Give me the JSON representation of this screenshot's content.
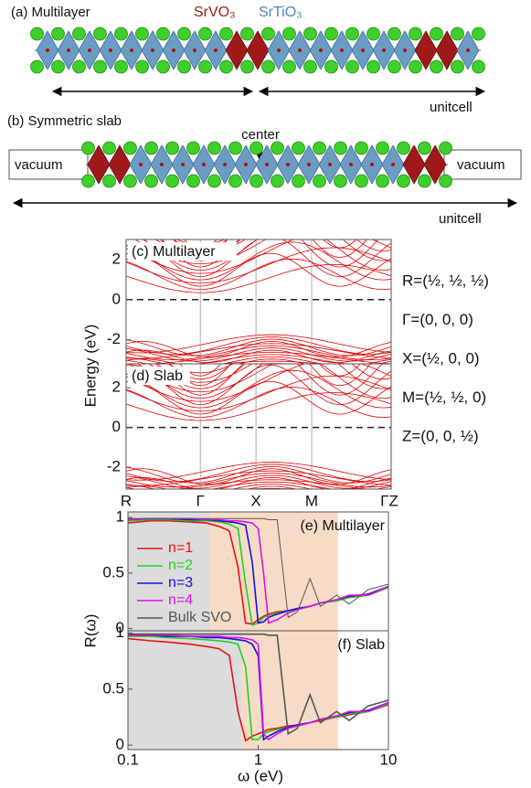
{
  "structure": {
    "a_title": "(a) Multilayer",
    "svo": "SrVO₃",
    "sto": "SrTiO₃",
    "a_unitcell": "unitcell",
    "b_title": "(b) Symmetric slab",
    "center": "center",
    "vacuum_left": "vacuum",
    "vacuum_right": "vacuum",
    "b_unitcell": "unitcell"
  },
  "k_points": [
    "R=(½, ½, ½)",
    "Γ=(0, 0, 0)",
    "X=(½, 0, 0)",
    "M=(½, ½, 0)",
    "Z=(0, 0, ½)"
  ],
  "chart_data": [
    {
      "type": "band",
      "title": "(c) Multilayer",
      "ylabel": "Energy (eV)",
      "ylim": [
        -3.2,
        3.0
      ],
      "yticks": [
        -2,
        0,
        2
      ],
      "color": "#e00000"
    },
    {
      "type": "band",
      "title": "(d) Slab",
      "categories": [
        "R",
        "Γ",
        "X",
        "M",
        "ΓZ"
      ],
      "ylim": [
        -3.1,
        3.2
      ],
      "yticks": [
        -2,
        0,
        2
      ],
      "color": "#e00000"
    },
    {
      "type": "line",
      "title": "(e) Multilayer",
      "ylabel": "R(ω)",
      "xscale": "log",
      "xlim": [
        0.1,
        10
      ],
      "ylim": [
        -0.02,
        1.05
      ],
      "yticks": [
        0,
        0.5,
        1
      ],
      "legend": "upper-left",
      "regions": [
        {
          "x": [
            0.1,
            0.43
          ],
          "color": "#dcdcdc"
        },
        {
          "x": [
            0.43,
            4.1
          ],
          "color": "#f6dcc6"
        }
      ],
      "x": [
        0.1,
        0.15,
        0.2,
        0.3,
        0.4,
        0.5,
        0.6,
        0.7,
        0.8,
        0.9,
        1,
        1.1,
        1.2,
        1.4,
        1.7,
        2,
        2.5,
        3,
        4,
        5,
        7,
        10
      ],
      "series": [
        {
          "name": "n=1",
          "color": "#e81010",
          "values": [
            0.95,
            0.97,
            0.97,
            0.96,
            0.95,
            0.92,
            0.88,
            0.55,
            0.05,
            0.04,
            0.08,
            0.11,
            0.13,
            0.15,
            0.16,
            0.18,
            0.2,
            0.23,
            0.25,
            0.28,
            0.3,
            0.37
          ]
        },
        {
          "name": "n=2",
          "color": "#20d020",
          "values": [
            0.97,
            0.98,
            0.98,
            0.97,
            0.97,
            0.96,
            0.94,
            0.9,
            0.4,
            0.03,
            0.05,
            0.1,
            0.12,
            0.14,
            0.16,
            0.18,
            0.2,
            0.23,
            0.25,
            0.28,
            0.3,
            0.37
          ]
        },
        {
          "name": "n=3",
          "color": "#1010e0",
          "values": [
            0.98,
            0.99,
            0.99,
            0.98,
            0.98,
            0.97,
            0.96,
            0.95,
            0.93,
            0.6,
            0.05,
            0.06,
            0.1,
            0.13,
            0.16,
            0.18,
            0.2,
            0.23,
            0.26,
            0.29,
            0.31,
            0.38
          ]
        },
        {
          "name": "n=4",
          "color": "#e010e0",
          "values": [
            0.98,
            0.99,
            0.99,
            0.99,
            0.98,
            0.98,
            0.97,
            0.97,
            0.96,
            0.95,
            0.9,
            0.5,
            0.05,
            0.08,
            0.14,
            0.17,
            0.2,
            0.23,
            0.26,
            0.3,
            0.3,
            0.38
          ]
        },
        {
          "name": "Bulk SVO",
          "color": "#555555",
          "values": [
            0.99,
            0.99,
            0.99,
            0.99,
            0.99,
            0.99,
            0.99,
            0.99,
            0.99,
            0.99,
            0.99,
            0.99,
            0.98,
            0.98,
            0.1,
            0.15,
            0.45,
            0.2,
            0.3,
            0.22,
            0.35,
            0.4
          ]
        }
      ]
    },
    {
      "type": "line",
      "title": "(f) Slab",
      "xlabel": "ω (eV)",
      "xscale": "log",
      "xlim": [
        0.1,
        10
      ],
      "ylim": [
        -0.04,
        1.02
      ],
      "xticks": [
        0.1,
        1,
        10
      ],
      "yticks": [
        0,
        0.5,
        1
      ],
      "regions": [
        {
          "x": [
            0.1,
            0.75
          ],
          "color": "#dcdcdc"
        },
        {
          "x": [
            0.75,
            4.1
          ],
          "color": "#f6dcc6"
        }
      ],
      "x": [
        0.1,
        0.15,
        0.2,
        0.3,
        0.4,
        0.5,
        0.6,
        0.7,
        0.8,
        0.9,
        1,
        1.1,
        1.2,
        1.4,
        1.7,
        2,
        2.5,
        3,
        4,
        5,
        7,
        10
      ],
      "series": [
        {
          "color": "#e81010",
          "values": [
            0.95,
            0.93,
            0.92,
            0.9,
            0.88,
            0.86,
            0.8,
            0.3,
            0.04,
            0.08,
            0.1,
            0.12,
            0.14,
            0.15,
            0.17,
            0.18,
            0.2,
            0.22,
            0.25,
            0.27,
            0.3,
            0.36
          ]
        },
        {
          "color": "#20d020",
          "values": [
            0.97,
            0.97,
            0.96,
            0.95,
            0.94,
            0.93,
            0.92,
            0.9,
            0.7,
            0.05,
            0.05,
            0.1,
            0.12,
            0.14,
            0.16,
            0.18,
            0.2,
            0.23,
            0.25,
            0.28,
            0.3,
            0.37
          ]
        },
        {
          "color": "#1010e0",
          "values": [
            0.98,
            0.98,
            0.97,
            0.97,
            0.96,
            0.96,
            0.95,
            0.94,
            0.93,
            0.9,
            0.8,
            0.05,
            0.08,
            0.12,
            0.16,
            0.18,
            0.2,
            0.23,
            0.26,
            0.29,
            0.31,
            0.38
          ]
        },
        {
          "color": "#e010e0",
          "values": [
            0.98,
            0.98,
            0.98,
            0.97,
            0.97,
            0.97,
            0.96,
            0.96,
            0.95,
            0.94,
            0.9,
            0.1,
            0.05,
            0.1,
            0.15,
            0.17,
            0.2,
            0.23,
            0.26,
            0.3,
            0.3,
            0.38
          ]
        },
        {
          "color": "#555555",
          "values": [
            0.99,
            0.99,
            0.99,
            0.99,
            0.99,
            0.99,
            0.99,
            0.99,
            0.99,
            0.99,
            0.99,
            0.99,
            0.98,
            0.98,
            0.1,
            0.15,
            0.45,
            0.2,
            0.3,
            0.22,
            0.35,
            0.4
          ]
        }
      ]
    }
  ]
}
